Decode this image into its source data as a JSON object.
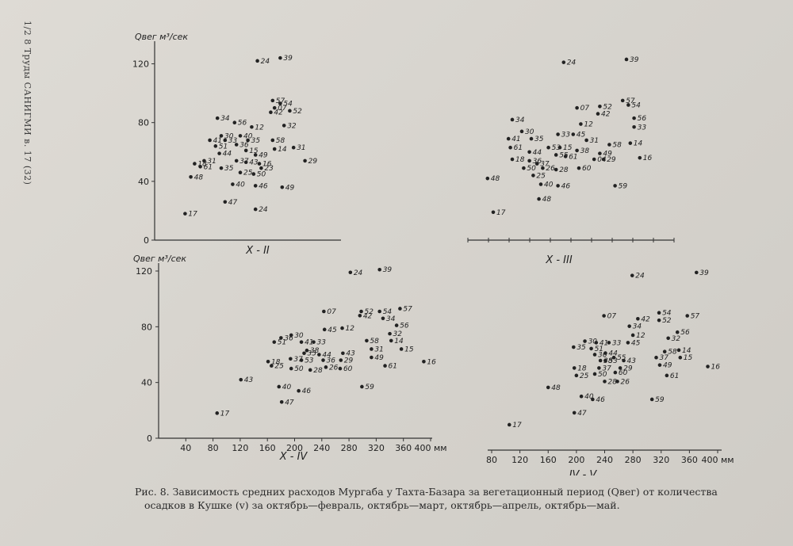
{
  "side_header": "1/2 8 Труды САНИГМИ в. 17 (32)",
  "caption": {
    "line1": "Рис. 8. Зависимость средних расходов Мургаба у Тахта-Базара за вегетационный период (Qвег) от количества",
    "line2": "осадков в Кушке (v) за октябрь—февраль, октябрь—март, октябрь—апрель, октябрь—май."
  },
  "chart_data": [
    {
      "type": "scatter",
      "panel_label": "X - II",
      "ylabel": "Qвег м³/сек",
      "ylim": [
        0,
        130
      ],
      "y_ticks": [
        "0",
        "40",
        "80",
        "120"
      ],
      "x_ticks": [],
      "points": [
        {
          "label": "24",
          "x": 0.54,
          "y": 122
        },
        {
          "label": "39",
          "x": 0.66,
          "y": 124
        },
        {
          "label": "34",
          "x": 0.33,
          "y": 83
        },
        {
          "label": "56",
          "x": 0.42,
          "y": 80
        },
        {
          "label": "57",
          "x": 0.62,
          "y": 95
        },
        {
          "label": "54",
          "x": 0.66,
          "y": 93
        },
        {
          "label": "07",
          "x": 0.63,
          "y": 90
        },
        {
          "label": "42",
          "x": 0.61,
          "y": 87
        },
        {
          "label": "52",
          "x": 0.71,
          "y": 88
        },
        {
          "label": "12",
          "x": 0.51,
          "y": 77
        },
        {
          "label": "32",
          "x": 0.68,
          "y": 78
        },
        {
          "label": "30",
          "x": 0.35,
          "y": 71
        },
        {
          "label": "40",
          "x": 0.45,
          "y": 71
        },
        {
          "label": "41",
          "x": 0.29,
          "y": 68
        },
        {
          "label": "33",
          "x": 0.37,
          "y": 68
        },
        {
          "label": "35",
          "x": 0.49,
          "y": 68
        },
        {
          "label": "36",
          "x": 0.43,
          "y": 65
        },
        {
          "label": "58",
          "x": 0.62,
          "y": 68
        },
        {
          "label": "51",
          "x": 0.32,
          "y": 64
        },
        {
          "label": "14",
          "x": 0.63,
          "y": 62
        },
        {
          "label": "31",
          "x": 0.73,
          "y": 63
        },
        {
          "label": "44",
          "x": 0.34,
          "y": 59
        },
        {
          "label": "15",
          "x": 0.48,
          "y": 61
        },
        {
          "label": "49",
          "x": 0.53,
          "y": 58
        },
        {
          "label": "18",
          "x": 0.21,
          "y": 52
        },
        {
          "label": "31",
          "x": 0.26,
          "y": 54
        },
        {
          "label": "37",
          "x": 0.43,
          "y": 54
        },
        {
          "label": "43",
          "x": 0.48,
          "y": 53
        },
        {
          "label": "16",
          "x": 0.55,
          "y": 52
        },
        {
          "label": "29",
          "x": 0.79,
          "y": 54
        },
        {
          "label": "61",
          "x": 0.24,
          "y": 50
        },
        {
          "label": "35",
          "x": 0.35,
          "y": 49
        },
        {
          "label": "23",
          "x": 0.56,
          "y": 49
        },
        {
          "label": "25",
          "x": 0.45,
          "y": 46
        },
        {
          "label": "50",
          "x": 0.52,
          "y": 45
        },
        {
          "label": "48",
          "x": 0.19,
          "y": 43
        },
        {
          "label": "40",
          "x": 0.41,
          "y": 38
        },
        {
          "label": "46",
          "x": 0.53,
          "y": 37
        },
        {
          "label": "49",
          "x": 0.67,
          "y": 36
        },
        {
          "label": "47",
          "x": 0.37,
          "y": 26
        },
        {
          "label": "24",
          "x": 0.53,
          "y": 21
        },
        {
          "label": "17",
          "x": 0.16,
          "y": 18
        }
      ]
    },
    {
      "type": "scatter",
      "panel_label": "X - III",
      "ylim": [
        0,
        130
      ],
      "x_ticks": [],
      "points": [
        {
          "label": "24",
          "x": 0.42,
          "y": 121
        },
        {
          "label": "39",
          "x": 0.75,
          "y": 123
        },
        {
          "label": "57",
          "x": 0.73,
          "y": 95
        },
        {
          "label": "54",
          "x": 0.76,
          "y": 92
        },
        {
          "label": "07",
          "x": 0.49,
          "y": 90
        },
        {
          "label": "52",
          "x": 0.61,
          "y": 91
        },
        {
          "label": "42",
          "x": 0.6,
          "y": 86
        },
        {
          "label": "34",
          "x": 0.15,
          "y": 82
        },
        {
          "label": "56",
          "x": 0.79,
          "y": 83
        },
        {
          "label": "12",
          "x": 0.51,
          "y": 79
        },
        {
          "label": "33",
          "x": 0.79,
          "y": 77
        },
        {
          "label": "30",
          "x": 0.2,
          "y": 74
        },
        {
          "label": "33",
          "x": 0.39,
          "y": 72
        },
        {
          "label": "45",
          "x": 0.47,
          "y": 72
        },
        {
          "label": "41",
          "x": 0.13,
          "y": 69
        },
        {
          "label": "35",
          "x": 0.25,
          "y": 69
        },
        {
          "label": "31",
          "x": 0.54,
          "y": 68
        },
        {
          "label": "58",
          "x": 0.66,
          "y": 65
        },
        {
          "label": "14",
          "x": 0.77,
          "y": 66
        },
        {
          "label": "61",
          "x": 0.14,
          "y": 63
        },
        {
          "label": "53",
          "x": 0.34,
          "y": 63
        },
        {
          "label": "15",
          "x": 0.4,
          "y": 63
        },
        {
          "label": "38",
          "x": 0.49,
          "y": 61
        },
        {
          "label": "44",
          "x": 0.24,
          "y": 60
        },
        {
          "label": "49",
          "x": 0.61,
          "y": 59
        },
        {
          "label": "55",
          "x": 0.38,
          "y": 58
        },
        {
          "label": "61",
          "x": 0.43,
          "y": 57
        },
        {
          "label": "04",
          "x": 0.58,
          "y": 55
        },
        {
          "label": "29",
          "x": 0.63,
          "y": 55
        },
        {
          "label": "16",
          "x": 0.82,
          "y": 56
        },
        {
          "label": "18",
          "x": 0.15,
          "y": 55
        },
        {
          "label": "36",
          "x": 0.24,
          "y": 54
        },
        {
          "label": "37",
          "x": 0.28,
          "y": 52
        },
        {
          "label": "50",
          "x": 0.21,
          "y": 49
        },
        {
          "label": "26",
          "x": 0.31,
          "y": 49
        },
        {
          "label": "28",
          "x": 0.38,
          "y": 48
        },
        {
          "label": "60",
          "x": 0.5,
          "y": 49
        },
        {
          "label": "25",
          "x": 0.26,
          "y": 44
        },
        {
          "label": "48",
          "x": 0.02,
          "y": 42
        },
        {
          "label": "40",
          "x": 0.3,
          "y": 38
        },
        {
          "label": "46",
          "x": 0.39,
          "y": 37
        },
        {
          "label": "59",
          "x": 0.69,
          "y": 37
        },
        {
          "label": "48",
          "x": 0.29,
          "y": 28
        },
        {
          "label": "17",
          "x": 0.05,
          "y": 19
        }
      ]
    },
    {
      "type": "scatter",
      "panel_label": "X - IV",
      "ylabel": "Qвег м³/сек",
      "ylim": [
        0,
        120
      ],
      "xlim": [
        0,
        400
      ],
      "y_ticks": [
        "0",
        "40",
        "80",
        "120"
      ],
      "x_ticks": [
        "40",
        "80",
        "120",
        "160",
        "200",
        "240",
        "280",
        "320",
        "360",
        "400 мм"
      ],
      "points": [
        {
          "label": "24",
          "x": 282,
          "y": 119
        },
        {
          "label": "39",
          "x": 325,
          "y": 121
        },
        {
          "label": "57",
          "x": 355,
          "y": 93
        },
        {
          "label": "07",
          "x": 243,
          "y": 91
        },
        {
          "label": "52",
          "x": 298,
          "y": 91
        },
        {
          "label": "54",
          "x": 325,
          "y": 91
        },
        {
          "label": "42",
          "x": 296,
          "y": 88
        },
        {
          "label": "34",
          "x": 330,
          "y": 86
        },
        {
          "label": "56",
          "x": 350,
          "y": 81
        },
        {
          "label": "12",
          "x": 270,
          "y": 79
        },
        {
          "label": "45",
          "x": 244,
          "y": 78
        },
        {
          "label": "32",
          "x": 340,
          "y": 75
        },
        {
          "label": "30",
          "x": 195,
          "y": 74
        },
        {
          "label": "36",
          "x": 180,
          "y": 72
        },
        {
          "label": "51",
          "x": 170,
          "y": 69
        },
        {
          "label": "41",
          "x": 210,
          "y": 69
        },
        {
          "label": "33",
          "x": 228,
          "y": 69
        },
        {
          "label": "58",
          "x": 306,
          "y": 70
        },
        {
          "label": "14",
          "x": 342,
          "y": 70
        },
        {
          "label": "31",
          "x": 313,
          "y": 64
        },
        {
          "label": "15",
          "x": 357,
          "y": 64
        },
        {
          "label": "38",
          "x": 218,
          "y": 63
        },
        {
          "label": "35",
          "x": 214,
          "y": 61
        },
        {
          "label": "44",
          "x": 236,
          "y": 60
        },
        {
          "label": "43",
          "x": 271,
          "y": 61
        },
        {
          "label": "49",
          "x": 313,
          "y": 58
        },
        {
          "label": "18",
          "x": 161,
          "y": 55
        },
        {
          "label": "37",
          "x": 194,
          "y": 57
        },
        {
          "label": "53",
          "x": 210,
          "y": 56
        },
        {
          "label": "36",
          "x": 242,
          "y": 56
        },
        {
          "label": "29",
          "x": 268,
          "y": 56
        },
        {
          "label": "16",
          "x": 390,
          "y": 55
        },
        {
          "label": "25",
          "x": 166,
          "y": 52
        },
        {
          "label": "50",
          "x": 195,
          "y": 50
        },
        {
          "label": "28",
          "x": 223,
          "y": 49
        },
        {
          "label": "26",
          "x": 246,
          "y": 51
        },
        {
          "label": "60",
          "x": 267,
          "y": 50
        },
        {
          "label": "61",
          "x": 333,
          "y": 52
        },
        {
          "label": "43",
          "x": 121,
          "y": 42
        },
        {
          "label": "40",
          "x": 177,
          "y": 37
        },
        {
          "label": "59",
          "x": 299,
          "y": 37
        },
        {
          "label": "46",
          "x": 206,
          "y": 34
        },
        {
          "label": "47",
          "x": 181,
          "y": 26
        },
        {
          "label": "17",
          "x": 86,
          "y": 18
        }
      ]
    },
    {
      "type": "scatter",
      "panel_label": "IV - V",
      "ylim": [
        0,
        120
      ],
      "xlim": [
        80,
        400
      ],
      "x_ticks": [
        "80",
        "120",
        "160",
        "200",
        "240",
        "280",
        "320",
        "360",
        "400 мм"
      ],
      "points": [
        {
          "label": "24",
          "x": 279,
          "y": 117
        },
        {
          "label": "39",
          "x": 370,
          "y": 119
        },
        {
          "label": "07",
          "x": 239,
          "y": 90
        },
        {
          "label": "54",
          "x": 317,
          "y": 92
        },
        {
          "label": "57",
          "x": 357,
          "y": 90
        },
        {
          "label": "42",
          "x": 287,
          "y": 88
        },
        {
          "label": "52",
          "x": 317,
          "y": 87
        },
        {
          "label": "34",
          "x": 275,
          "y": 83
        },
        {
          "label": "56",
          "x": 343,
          "y": 79
        },
        {
          "label": "12",
          "x": 280,
          "y": 77
        },
        {
          "label": "32",
          "x": 330,
          "y": 75
        },
        {
          "label": "45",
          "x": 273,
          "y": 72
        },
        {
          "label": "30",
          "x": 212,
          "y": 73
        },
        {
          "label": "41",
          "x": 228,
          "y": 72
        },
        {
          "label": "33",
          "x": 246,
          "y": 72
        },
        {
          "label": "35",
          "x": 196,
          "y": 69
        },
        {
          "label": "51",
          "x": 221,
          "y": 68
        },
        {
          "label": "14",
          "x": 345,
          "y": 67
        },
        {
          "label": "36",
          "x": 226,
          "y": 64
        },
        {
          "label": "44",
          "x": 241,
          "y": 65
        },
        {
          "label": "58",
          "x": 325,
          "y": 66
        },
        {
          "label": "55",
          "x": 253,
          "y": 62
        },
        {
          "label": "43",
          "x": 267,
          "y": 60
        },
        {
          "label": "37",
          "x": 313,
          "y": 62
        },
        {
          "label": "15",
          "x": 347,
          "y": 62
        },
        {
          "label": "38",
          "x": 234,
          "y": 60
        },
        {
          "label": "53",
          "x": 241,
          "y": 60
        },
        {
          "label": "49",
          "x": 318,
          "y": 57
        },
        {
          "label": "18",
          "x": 197,
          "y": 55
        },
        {
          "label": "37",
          "x": 232,
          "y": 55
        },
        {
          "label": "29",
          "x": 262,
          "y": 55
        },
        {
          "label": "16",
          "x": 386,
          "y": 56
        },
        {
          "label": "50",
          "x": 226,
          "y": 51
        },
        {
          "label": "60",
          "x": 255,
          "y": 52
        },
        {
          "label": "25",
          "x": 200,
          "y": 50
        },
        {
          "label": "61",
          "x": 328,
          "y": 50
        },
        {
          "label": "28",
          "x": 240,
          "y": 46
        },
        {
          "label": "26",
          "x": 258,
          "y": 46
        },
        {
          "label": "48",
          "x": 160,
          "y": 42
        },
        {
          "label": "40",
          "x": 207,
          "y": 36
        },
        {
          "label": "46",
          "x": 223,
          "y": 34
        },
        {
          "label": "59",
          "x": 307,
          "y": 34
        },
        {
          "label": "47",
          "x": 197,
          "y": 25
        },
        {
          "label": "17",
          "x": 105,
          "y": 17
        }
      ]
    }
  ]
}
